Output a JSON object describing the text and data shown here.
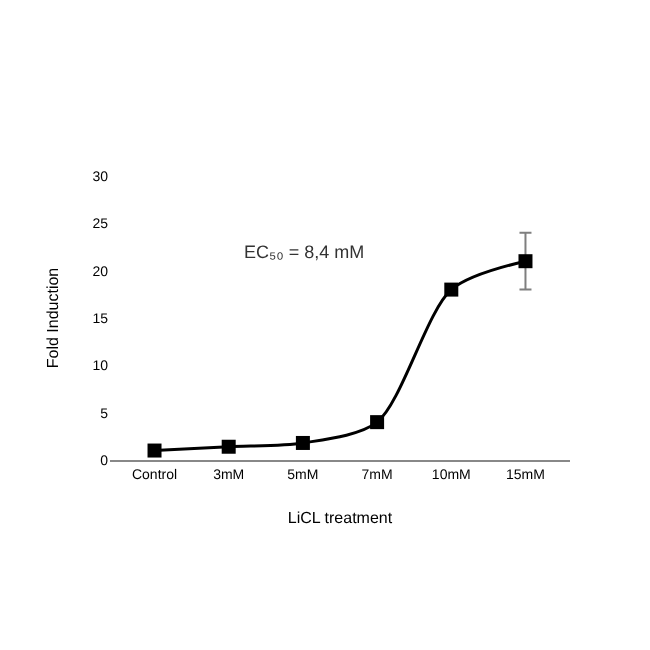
{
  "chart_data": {
    "type": "line",
    "xlabel": "LiCL treatment",
    "ylabel": "Fold Induction",
    "annotations": [
      "EC₅₀ = 8,4 mM"
    ],
    "categories": [
      "Control",
      "3mM",
      "5mM",
      "7mM",
      "10mM",
      "15mM"
    ],
    "series": [
      {
        "color": "#000000",
        "values": [
          1,
          1.4,
          1.8,
          4,
          18,
          21
        ],
        "errors": [
          null,
          null,
          null,
          null,
          null,
          3
        ]
      }
    ],
    "ylim": [
      0,
      30
    ],
    "yticks": [
      0,
      5,
      10,
      15,
      20,
      25,
      30
    ],
    "marker": "square",
    "line_style": "solid"
  }
}
